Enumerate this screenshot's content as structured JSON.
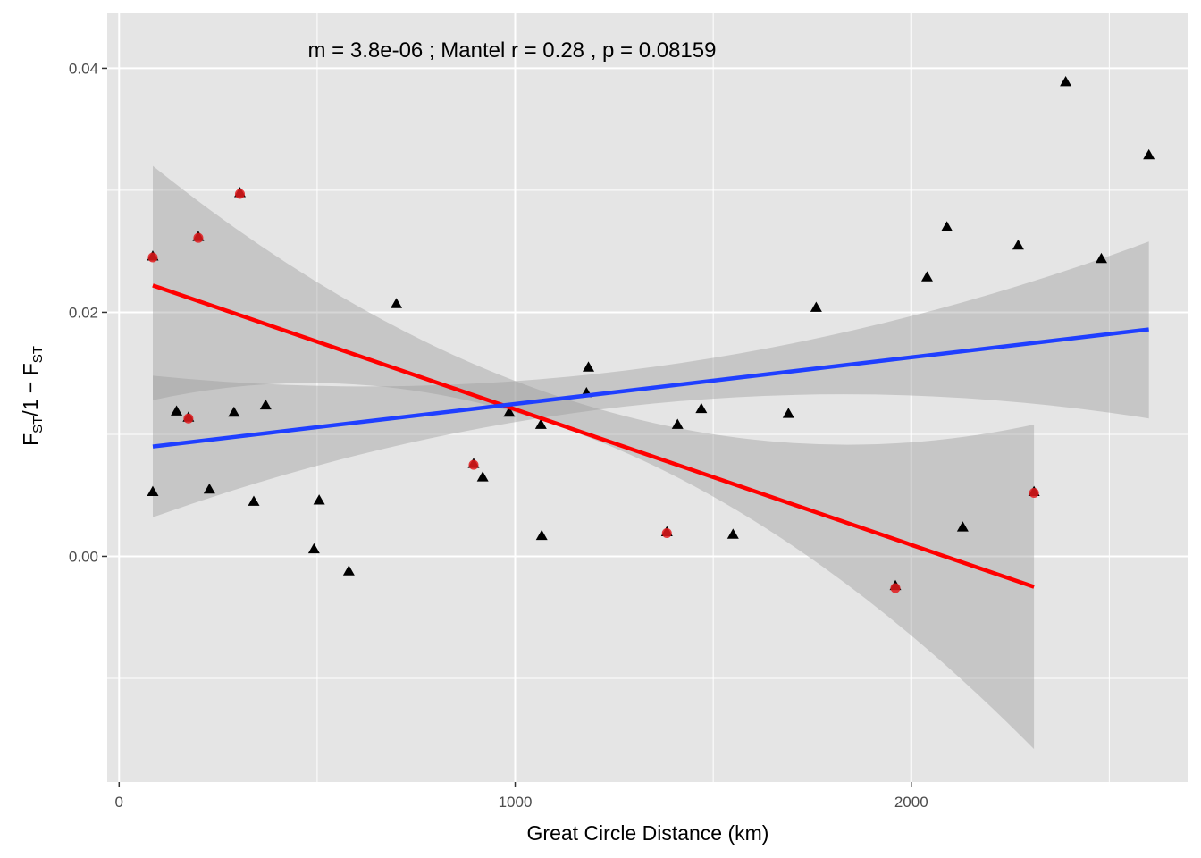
{
  "chart_data": {
    "type": "scatter",
    "annotation": "m = 3.8e-06 ; Mantel r = 0.28 , p = 0.08159",
    "xlabel": "Great Circle Distance (km)",
    "ylabel": {
      "main": "F",
      "sub1": "ST",
      "mid": "/1 − F",
      "sub2": "ST"
    },
    "xlim": [
      -30,
      2700
    ],
    "ylim": [
      -0.0185,
      0.0445
    ],
    "x_ticks": [
      {
        "value": 0,
        "label": "0"
      },
      {
        "value": 1000,
        "label": "1000"
      },
      {
        "value": 2000,
        "label": "2000"
      }
    ],
    "x_minor": [
      500,
      1500,
      2500
    ],
    "y_ticks": [
      {
        "value": 0.0,
        "label": "0.00"
      },
      {
        "value": 0.02,
        "label": "0.02"
      },
      {
        "value": 0.04,
        "label": "0.04"
      }
    ],
    "y_minor": [
      -0.01,
      0.01,
      0.03
    ],
    "grid": true,
    "colors": {
      "panel": "#e5e5e5",
      "grid": "#ffffff",
      "ribbon": "#999999",
      "triangle": "#000000",
      "circle": "#e31a1c",
      "fit_red": "#ff0000",
      "fit_blue": "#1f3fff"
    },
    "series": [
      {
        "marker": "triangle",
        "points": [
          [
            85,
            0.0053
          ],
          [
            145,
            0.0119
          ],
          [
            175,
            0.0114
          ],
          [
            200,
            0.0262
          ],
          [
            228,
            0.0055
          ],
          [
            290,
            0.0118
          ],
          [
            305,
            0.0298
          ],
          [
            340,
            0.0045
          ],
          [
            370,
            0.0124
          ],
          [
            492,
            0.0006
          ],
          [
            505,
            0.0046
          ],
          [
            580,
            -0.0012
          ],
          [
            700,
            0.0207
          ],
          [
            895,
            0.0076
          ],
          [
            918,
            0.0065
          ],
          [
            985,
            0.0118
          ],
          [
            1065,
            0.0108
          ],
          [
            1067,
            0.0017
          ],
          [
            1185,
            0.0155
          ],
          [
            1180,
            0.0134
          ],
          [
            1383,
            0.002
          ],
          [
            1410,
            0.0108
          ],
          [
            1470,
            0.0121
          ],
          [
            1550,
            0.0018
          ],
          [
            1690,
            0.0117
          ],
          [
            1760,
            0.0204
          ],
          [
            2040,
            0.0229
          ],
          [
            2090,
            0.027
          ],
          [
            2130,
            0.0024
          ],
          [
            2270,
            0.0255
          ],
          [
            2390,
            0.0389
          ],
          [
            2480,
            0.0244
          ],
          [
            2600,
            0.0329
          ],
          [
            1960,
            -0.0024
          ],
          [
            2310,
            0.0053
          ],
          [
            85,
            0.0246
          ]
        ]
      },
      {
        "marker": "circle",
        "points": [
          [
            85,
            0.0245
          ],
          [
            175,
            0.0113
          ],
          [
            200,
            0.0261
          ],
          [
            305,
            0.0297
          ],
          [
            895,
            0.0075
          ],
          [
            1383,
            0.0019
          ],
          [
            1960,
            -0.0026
          ],
          [
            2310,
            0.0052
          ]
        ]
      }
    ],
    "fits": [
      {
        "color_key": "fit_red",
        "x": [
          85,
          2310
        ],
        "y": [
          0.0222,
          -0.0025
        ],
        "band": {
          "x": [
            85,
            1197.5,
            2310
          ],
          "upper": [
            0.032,
            0.0122,
            0.0108
          ],
          "lower": [
            0.0128,
            0.0096,
            -0.0158
          ]
        }
      },
      {
        "color_key": "fit_blue",
        "x": [
          85,
          2600
        ],
        "y": [
          0.009,
          0.0186
        ],
        "band": {
          "x": [
            85,
            1342.5,
            2600
          ],
          "upper": [
            0.0148,
            0.0155,
            0.0258
          ],
          "lower": [
            0.0032,
            0.0125,
            0.0113
          ]
        }
      }
    ]
  }
}
